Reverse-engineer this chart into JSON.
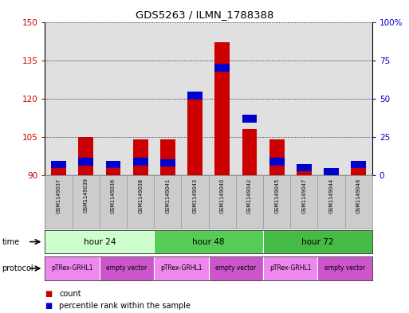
{
  "title": "GDS5263 / ILMN_1788388",
  "samples": [
    "GSM1149037",
    "GSM1149039",
    "GSM1149036",
    "GSM1149038",
    "GSM1149041",
    "GSM1149043",
    "GSM1149040",
    "GSM1149042",
    "GSM1149045",
    "GSM1149047",
    "GSM1149044",
    "GSM1149046"
  ],
  "count_values": [
    94,
    105,
    94,
    104,
    104,
    121,
    142,
    108,
    104,
    93,
    90,
    94
  ],
  "percentile_values": [
    7,
    9,
    7,
    9,
    8,
    52,
    70,
    37,
    9,
    5,
    2,
    7
  ],
  "ymin": 90,
  "ymax": 150,
  "y_ticks": [
    90,
    105,
    120,
    135,
    150
  ],
  "y_right_ticks": [
    0,
    25,
    50,
    75,
    100
  ],
  "bar_color": "#cc0000",
  "percentile_color": "#0000cc",
  "bg_color": "#ffffff",
  "plot_bg": "#e0e0e0",
  "bar_width": 0.55,
  "time_groups": [
    {
      "label": "hour 24",
      "start": 0,
      "end": 3,
      "color": "#ccffcc"
    },
    {
      "label": "hour 48",
      "start": 4,
      "end": 7,
      "color": "#55cc55"
    },
    {
      "label": "hour 72",
      "start": 8,
      "end": 11,
      "color": "#44bb44"
    }
  ],
  "protocol_groups": [
    {
      "label": "pTRex-GRHL1",
      "start": 0,
      "end": 1,
      "color": "#ee88ee"
    },
    {
      "label": "empty vector",
      "start": 2,
      "end": 3,
      "color": "#cc55cc"
    },
    {
      "label": "pTRex-GRHL1",
      "start": 4,
      "end": 5,
      "color": "#ee88ee"
    },
    {
      "label": "empty vector",
      "start": 6,
      "end": 7,
      "color": "#cc55cc"
    },
    {
      "label": "pTRex-GRHL1",
      "start": 8,
      "end": 9,
      "color": "#ee88ee"
    },
    {
      "label": "empty vector",
      "start": 10,
      "end": 11,
      "color": "#cc55cc"
    }
  ],
  "left_label_color": "#cc0000",
  "right_label_color": "#0000cc",
  "grid_color": "#000000"
}
